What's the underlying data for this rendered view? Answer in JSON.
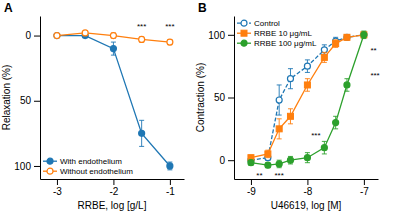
{
  "chart_data": [
    {
      "type": "line",
      "title": "A",
      "x": [
        -3,
        -2.5,
        -2,
        -1.5,
        -1
      ],
      "series": [
        {
          "name": "With endothelium",
          "values": [
            0,
            0,
            10,
            75,
            100
          ],
          "yerr": [
            0.5,
            0.5,
            5,
            10,
            3
          ],
          "marker": "circle",
          "line_style": "solid"
        },
        {
          "name": "Without endothelium",
          "values": [
            0,
            -2,
            0,
            3,
            5
          ],
          "yerr": [
            0.5,
            0.5,
            2,
            2,
            2
          ],
          "marker": "open-circle",
          "line_style": "solid"
        }
      ],
      "annotations": [
        {
          "x": -1.5,
          "y": -4,
          "text": "***"
        },
        {
          "x": -1,
          "y": -4,
          "text": "***"
        }
      ],
      "xlabel": "RRBE, log [g/L]",
      "ylabel": "Relaxation (%)",
      "xlim": [
        -3.3,
        -0.75
      ],
      "ylim": [
        110,
        -15
      ],
      "xticks": [
        -3,
        -2,
        -1
      ],
      "yticks": [
        0,
        50,
        100
      ],
      "grid": false,
      "legend": "lower left"
    },
    {
      "type": "line",
      "title": "B",
      "x": [
        -9,
        -8.7,
        -8.5,
        -8.3,
        -8,
        -7.7,
        -7.5,
        -7.3,
        -7
      ],
      "series": [
        {
          "name": "Control",
          "values": [
            0,
            2,
            48,
            65,
            75,
            88,
            95,
            98,
            100
          ],
          "yerr": [
            1,
            2,
            12,
            8,
            5,
            4,
            3,
            2,
            2
          ],
          "marker": "open-circle",
          "line_style": "dashed"
        },
        {
          "name": "RRBE 10 μg/mL",
          "values": [
            2,
            5,
            25,
            35,
            60,
            82,
            93,
            98,
            100
          ],
          "yerr": [
            2,
            3,
            8,
            6,
            5,
            4,
            3,
            2,
            2
          ],
          "marker": "square",
          "line_style": "solid"
        },
        {
          "name": "RRBE 100 μg/mL",
          "values": [
            -2,
            -4,
            -3,
            0,
            2,
            10,
            30,
            60,
            100
          ],
          "yerr": [
            2,
            2,
            3,
            3,
            4,
            5,
            5,
            5,
            3
          ],
          "marker": "circle",
          "line_style": "solid"
        }
      ],
      "annotations": [
        {
          "x": -8.85,
          "y": -9,
          "text": "**"
        },
        {
          "x": -8.5,
          "y": -9,
          "text": "***"
        },
        {
          "x": -7.85,
          "y": 23,
          "text": "***"
        },
        {
          "x": -6.92,
          "y": 68,
          "text": "***"
        },
        {
          "x": -6.92,
          "y": 88,
          "text": "**"
        }
      ],
      "xlabel": "U46619, log [M]",
      "ylabel": "Contraction (%)",
      "xlim": [
        -9.3,
        -6.75
      ],
      "ylim": [
        -15,
        115
      ],
      "xticks": [
        -9,
        -8,
        -7
      ],
      "yticks": [
        0,
        50,
        100
      ],
      "grid": false,
      "legend": "upper left"
    }
  ]
}
